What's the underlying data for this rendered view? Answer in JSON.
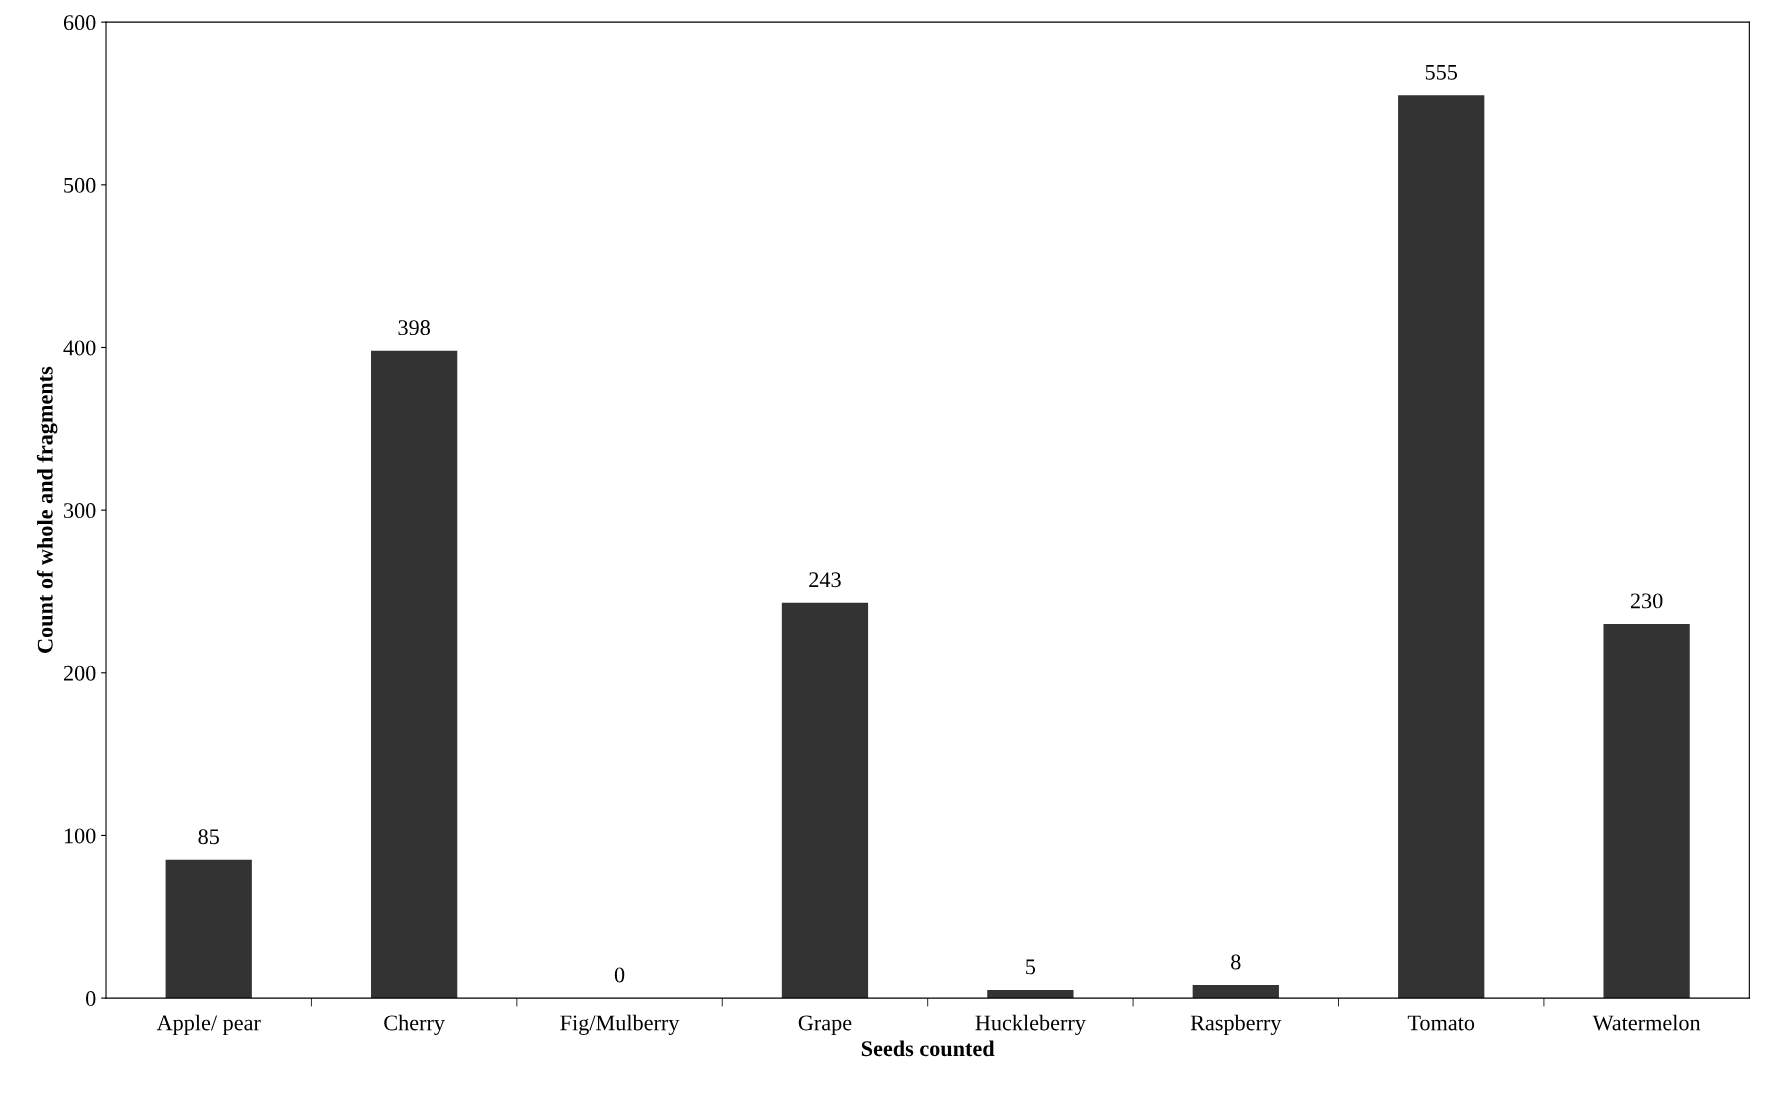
{
  "chart_data": {
    "type": "bar",
    "xlabel": "Seeds counted",
    "ylabel": "Count of whole and fragments",
    "categories": [
      "Apple/ pear",
      "Cherry",
      "Fig/Mulberry",
      "Grape",
      "Huckleberry",
      "Raspberry",
      "Tomato",
      "Watermelon"
    ],
    "values": [
      85,
      398,
      0,
      243,
      5,
      8,
      555,
      230
    ],
    "color": "#333333",
    "ylim": [
      0,
      600
    ],
    "yticks": [
      0,
      100,
      200,
      300,
      400,
      500,
      600
    ],
    "grid": false,
    "data_labels": true
  }
}
